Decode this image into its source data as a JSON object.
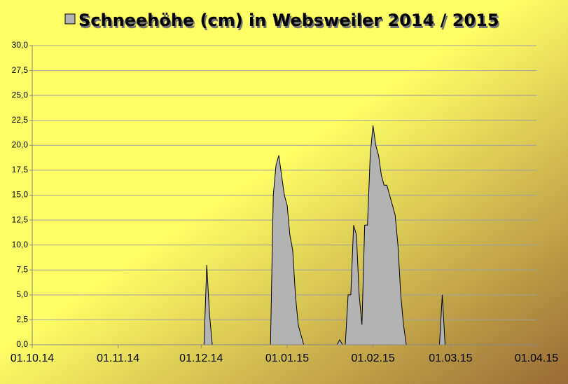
{
  "chart_data": {
    "type": "area",
    "series": [
      {
        "name": "Schneehöhe (cm) in Websweiler 2014 / 2015",
        "color": "#b3b3b3",
        "x": [
          "01.10.14",
          "02.12.14",
          "03.12.14",
          "04.12.14",
          "05.12.14",
          "26.12.14",
          "27.12.14",
          "28.12.14",
          "29.12.14",
          "30.12.14",
          "31.12.14",
          "01.01.15",
          "02.01.15",
          "03.01.15",
          "04.01.15",
          "05.01.15",
          "06.01.15",
          "07.01.15",
          "19.01.15",
          "20.01.15",
          "21.01.15",
          "22.01.15",
          "23.01.15",
          "24.01.15",
          "25.01.15",
          "26.01.15",
          "27.01.15",
          "28.01.15",
          "29.01.15",
          "30.01.15",
          "31.01.15",
          "01.02.15",
          "02.02.15",
          "03.02.15",
          "04.02.15",
          "05.02.15",
          "06.02.15",
          "07.02.15",
          "08.02.15",
          "09.02.15",
          "10.02.15",
          "11.02.15",
          "12.02.15",
          "13.02.15",
          "25.02.15",
          "26.02.15",
          "27.02.15",
          "01.04.15"
        ],
        "values": [
          0,
          0,
          8,
          3,
          0,
          0,
          15,
          18,
          19,
          17,
          15,
          14,
          11,
          9.5,
          5,
          2,
          1,
          0,
          0,
          0.5,
          0,
          0,
          5,
          5,
          12,
          11,
          5,
          2,
          12,
          12,
          19,
          22,
          20,
          19,
          17,
          16,
          16,
          15,
          14,
          13,
          10,
          5,
          2,
          0,
          0,
          5,
          0,
          0
        ]
      }
    ],
    "xlim": [
      "01.10.14",
      "01.04.15"
    ],
    "xticks": [
      "01.10.14",
      "01.11.14",
      "01.12.14",
      "01.01.15",
      "01.02.15",
      "01.03.15",
      "01.04.15"
    ],
    "ylim": [
      0,
      30
    ],
    "yticks": [
      {
        "value": 0,
        "label": "0,0"
      },
      {
        "value": 2.5,
        "label": "2,5"
      },
      {
        "value": 5,
        "label": "5,0"
      },
      {
        "value": 7.5,
        "label": "7,5"
      },
      {
        "value": 10,
        "label": "10,0"
      },
      {
        "value": 12.5,
        "label": "12,5"
      },
      {
        "value": 15,
        "label": "15,0"
      },
      {
        "value": 17.5,
        "label": "17,5"
      },
      {
        "value": 20,
        "label": "20,0"
      },
      {
        "value": 22.5,
        "label": "22,5"
      },
      {
        "value": 25,
        "label": "25,0"
      },
      {
        "value": 27.5,
        "label": "27,5"
      },
      {
        "value": 30,
        "label": "30,0"
      }
    ],
    "grid": true
  }
}
